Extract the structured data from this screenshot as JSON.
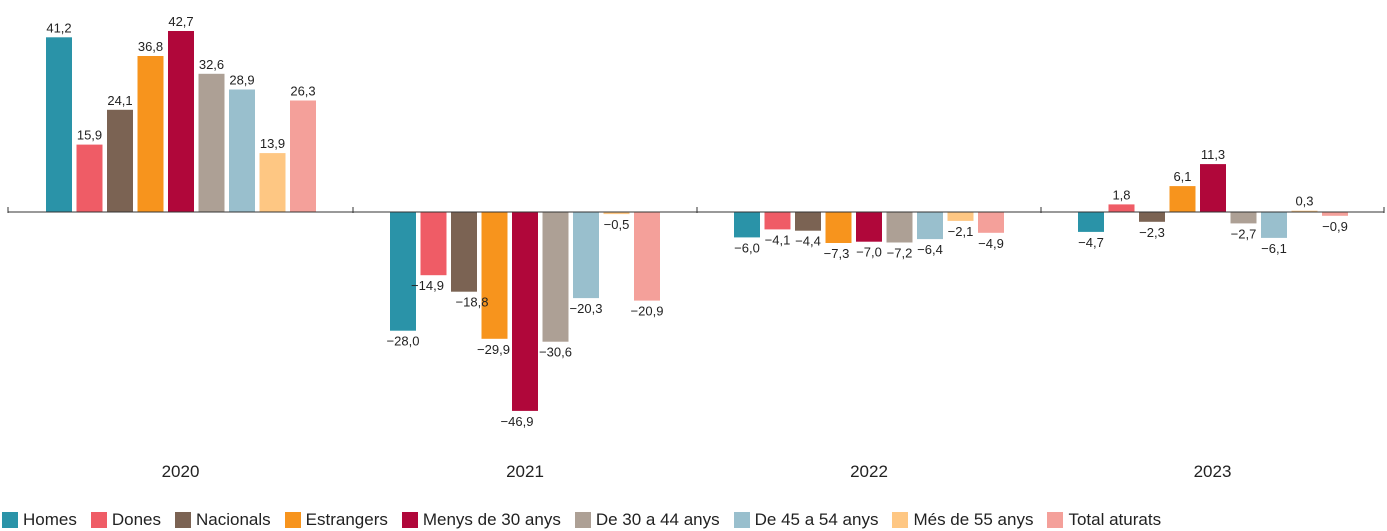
{
  "chart_data": {
    "type": "bar",
    "categories": [
      "2020",
      "2021",
      "2022",
      "2023"
    ],
    "ylim": [
      -50,
      45
    ],
    "grid": false,
    "legend_position": "bottom",
    "series": [
      {
        "name": "Homes",
        "color": "#2a93a8",
        "values": [
          41.2,
          -28.0,
          -6.0,
          -4.7
        ],
        "labels": [
          "41,2",
          "−28,0",
          "−6,0",
          "−4,7"
        ]
      },
      {
        "name": "Dones",
        "color": "#ef5c66",
        "values": [
          15.9,
          -14.9,
          -4.1,
          1.8
        ],
        "labels": [
          "15,9",
          "−14,9",
          "−4,1",
          "1,8"
        ]
      },
      {
        "name": "Nacionals",
        "color": "#7b6353",
        "values": [
          24.1,
          -18.8,
          -4.4,
          -2.3
        ],
        "labels": [
          "24,1",
          "−18,8",
          "−4,4",
          "−2,3"
        ]
      },
      {
        "name": "Estrangers",
        "color": "#f7941d",
        "values": [
          36.8,
          -29.9,
          -7.3,
          6.1
        ],
        "labels": [
          "36,8",
          "−29,9",
          "−7,3",
          "6,1"
        ]
      },
      {
        "name": "Menys de 30 anys",
        "color": "#b0073a",
        "values": [
          42.7,
          -46.9,
          -7.0,
          11.3
        ],
        "labels": [
          "42,7",
          "−46,9",
          "−7,0",
          "11,3"
        ]
      },
      {
        "name": "De 30 a 44 anys",
        "color": "#ada095",
        "values": [
          32.6,
          -30.6,
          -7.2,
          -2.7
        ],
        "labels": [
          "32,6",
          "−30,6",
          "−7,2",
          "−2,7"
        ]
      },
      {
        "name": "De 45 a 54 anys",
        "color": "#99bfcd",
        "values": [
          28.9,
          -20.3,
          -6.4,
          -6.1
        ],
        "labels": [
          "28,9",
          "−20,3",
          "−6,4",
          "−6,1"
        ]
      },
      {
        "name": "Més de 55 anys",
        "color": "#fec783",
        "values": [
          13.9,
          -0.5,
          -2.1,
          0.3
        ],
        "labels": [
          "13,9",
          "−0,5",
          "−2,1",
          "0,3"
        ]
      },
      {
        "name": "Total aturats",
        "color": "#f4a09a",
        "values": [
          26.3,
          -20.9,
          -4.9,
          -0.9
        ],
        "labels": [
          "26,3",
          "−20,9",
          "−4,9",
          "−0,9"
        ]
      }
    ]
  }
}
